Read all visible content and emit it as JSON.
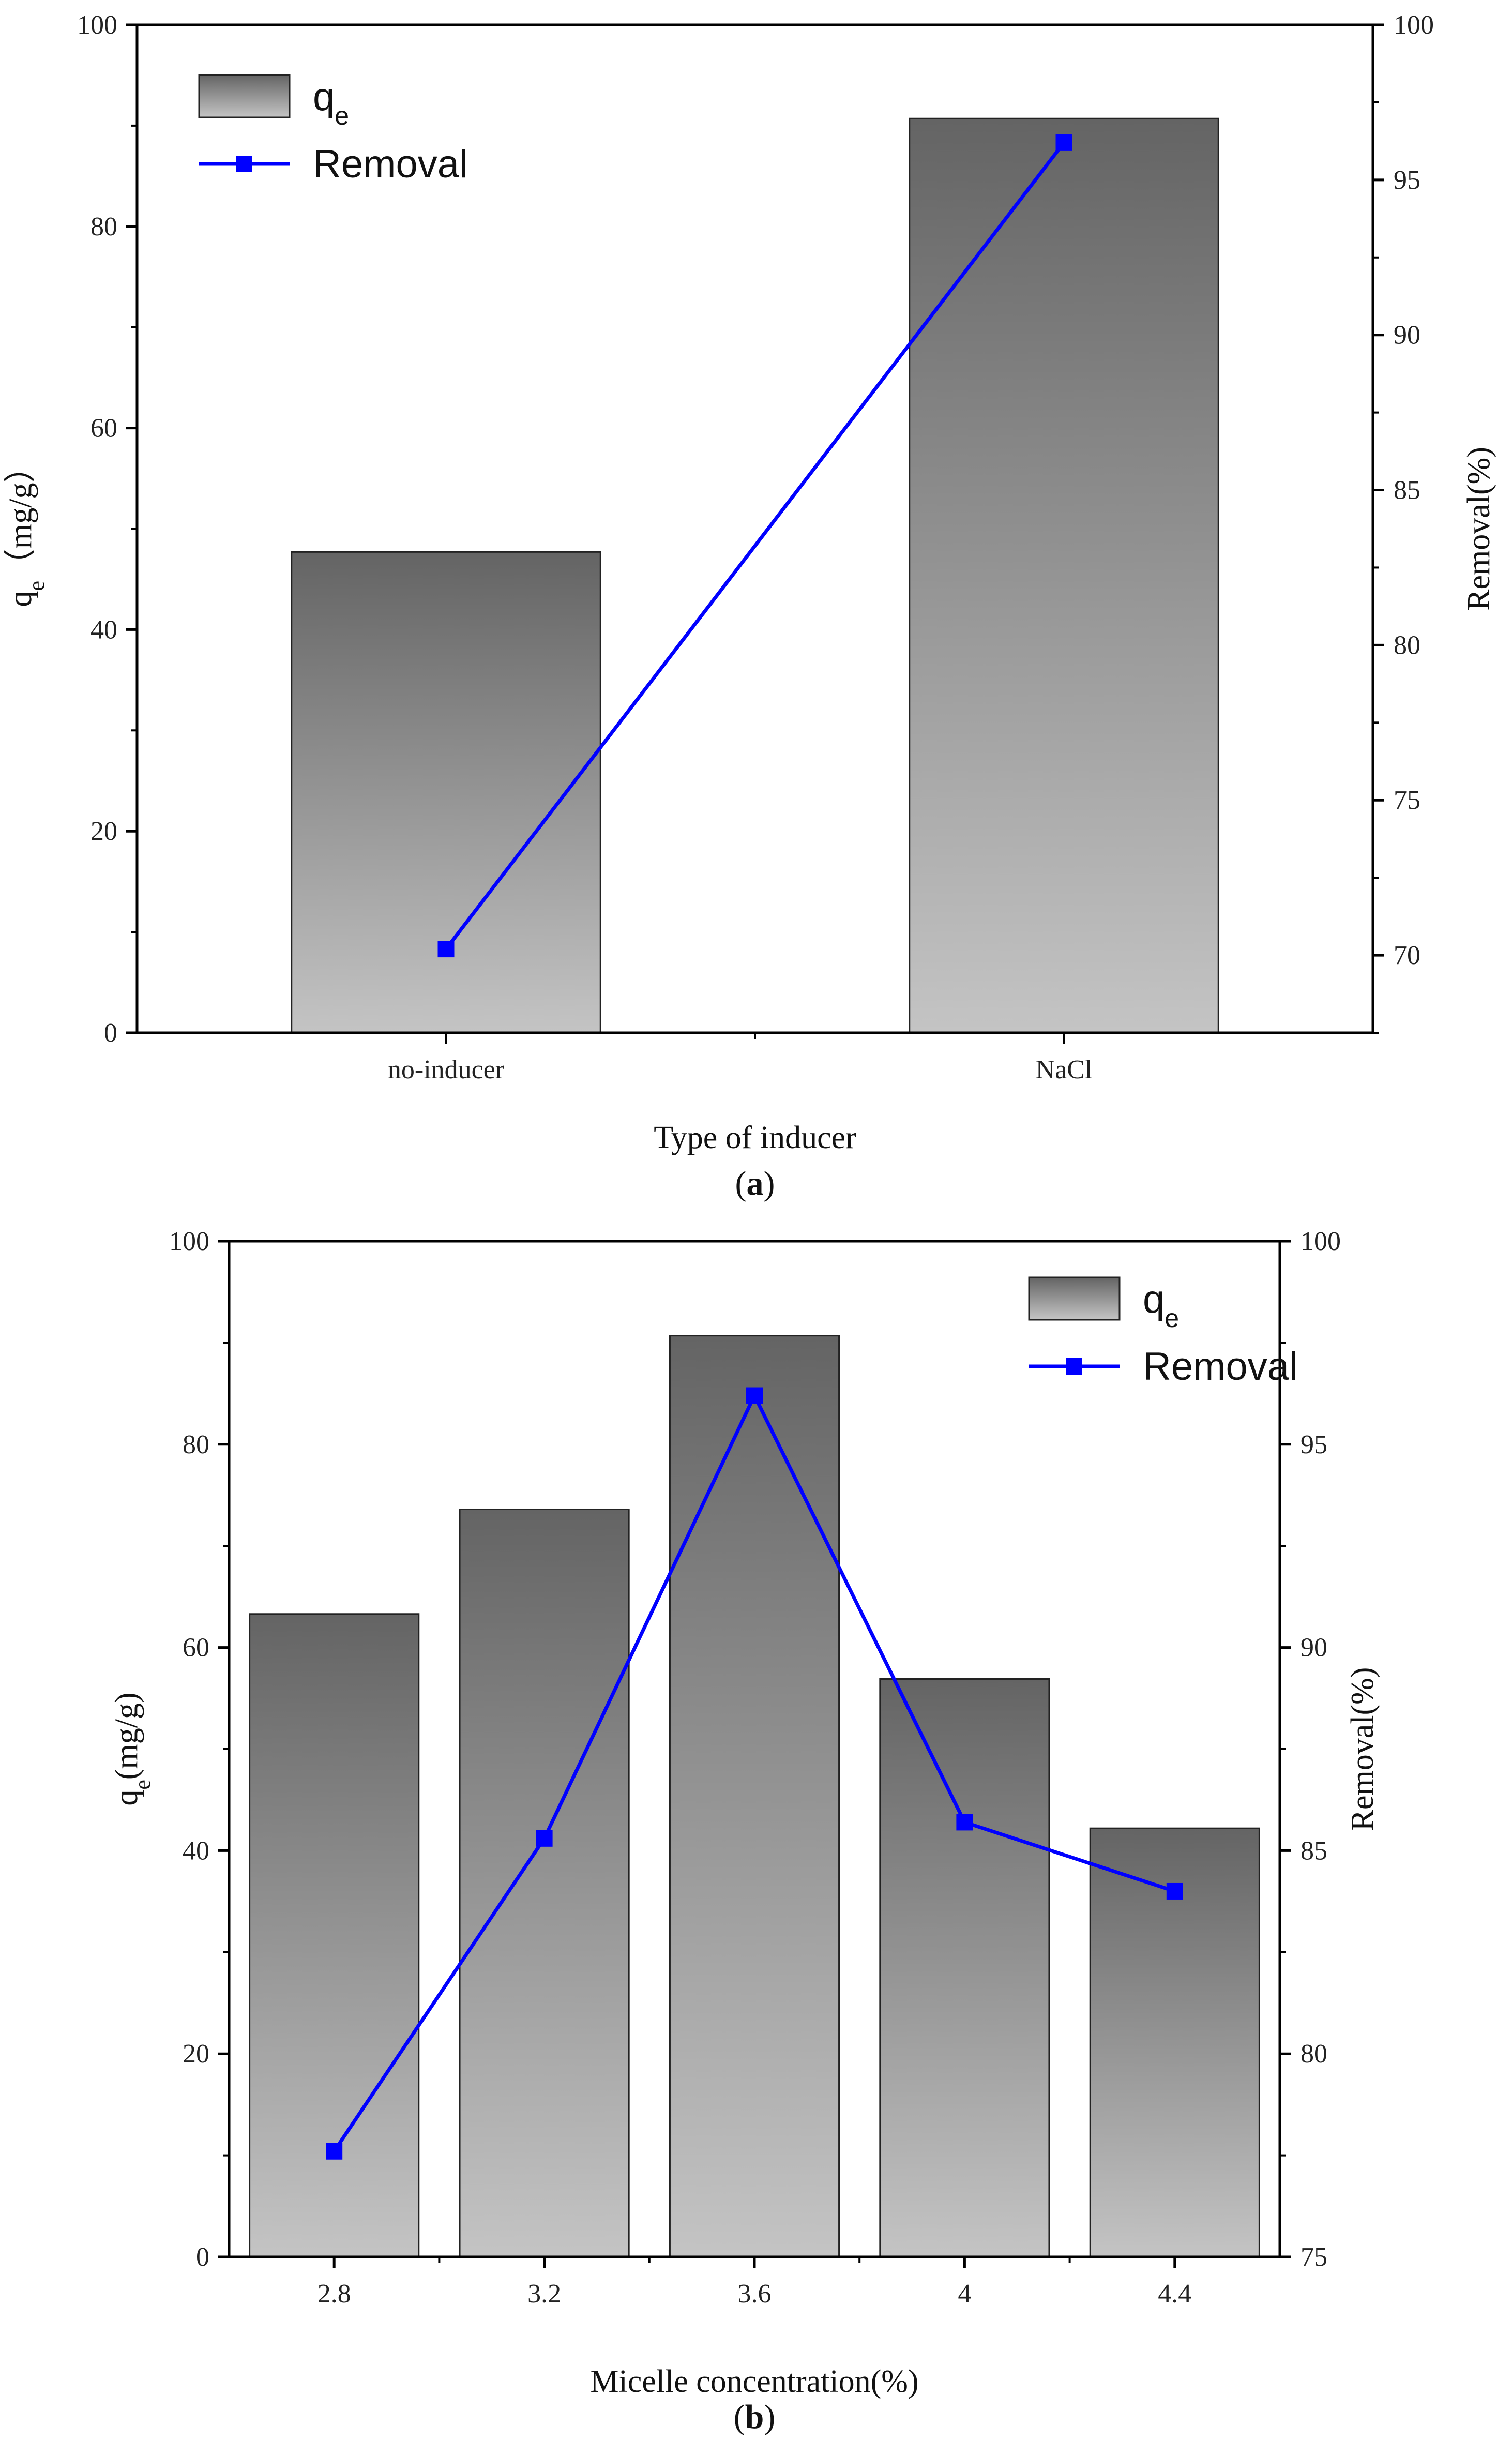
{
  "colors": {
    "line": "#0000ff",
    "bar_top": "#646464",
    "bar_bottom": "#c4c4c4",
    "axis": "#000000"
  },
  "chart_data": [
    {
      "id": "a",
      "type": "bar",
      "panel_label": "a",
      "categories": [
        "no-inducer",
        "NaCl"
      ],
      "series": [
        {
          "name": "q",
          "name_sub": "e",
          "kind": "bar",
          "axis": "left",
          "values": [
            47.7,
            90.7
          ]
        },
        {
          "name": "Removal",
          "kind": "line",
          "axis": "right",
          "values": [
            70.2,
            96.2
          ]
        }
      ],
      "xlabel": "Type of inducer",
      "ylabel_left": {
        "main": "q",
        "sub": "e",
        "rest": "（mg/g）"
      },
      "ylabel_right": "Removal(%)",
      "ylim_left": [
        0,
        100
      ],
      "yticks_left": [
        0,
        20,
        40,
        60,
        80,
        100
      ],
      "ylim_right": [
        67.5,
        100
      ],
      "yticks_right": [
        70,
        75,
        80,
        85,
        90,
        95,
        100
      ],
      "legend_position": "top-left"
    },
    {
      "id": "b",
      "type": "bar",
      "panel_label": "b",
      "categories": [
        "2.8",
        "3.2",
        "3.6",
        "4",
        "4.4"
      ],
      "series": [
        {
          "name": "q",
          "name_sub": "e",
          "kind": "bar",
          "axis": "left",
          "values": [
            63.3,
            73.6,
            90.7,
            56.9,
            42.2
          ]
        },
        {
          "name": "Removal",
          "kind": "line",
          "axis": "right",
          "values": [
            77.6,
            85.3,
            96.2,
            85.7,
            84.0
          ]
        }
      ],
      "xlabel": "Micelle concentration(%)",
      "ylabel_left": {
        "main": "q",
        "sub": "e",
        "rest": "(mg/g)"
      },
      "ylabel_right": "Removal(%)",
      "ylim_left": [
        0,
        100
      ],
      "yticks_left": [
        0,
        20,
        40,
        60,
        80,
        100
      ],
      "ylim_right": [
        75,
        100
      ],
      "yticks_right": [
        75,
        80,
        85,
        90,
        95,
        100
      ],
      "legend_position": "top-right"
    }
  ]
}
